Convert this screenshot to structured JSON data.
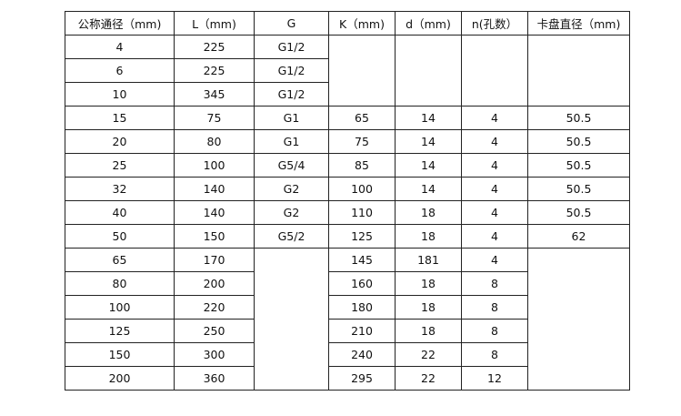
{
  "table": {
    "headers": [
      "公称通径（mm)",
      "L（mm)",
      "G",
      "K（mm)",
      "d（mm)",
      "n(孔数）",
      "卡盘直径（mm)"
    ],
    "rows": [
      [
        "4",
        "225",
        "G1/2",
        "",
        "",
        "",
        ""
      ],
      [
        "6",
        "225",
        "G1/2",
        null,
        null,
        null,
        null
      ],
      [
        "10",
        "345",
        "G1/2",
        null,
        null,
        null,
        null
      ],
      [
        "15",
        "75",
        "G1",
        "65",
        "14",
        "4",
        "50.5"
      ],
      [
        "20",
        "80",
        "G1",
        "75",
        "14",
        "4",
        "50.5"
      ],
      [
        "25",
        "100",
        "G5/4",
        "85",
        "14",
        "4",
        "50.5"
      ],
      [
        "32",
        "140",
        "G2",
        "100",
        "14",
        "4",
        "50.5"
      ],
      [
        "40",
        "140",
        "G2",
        "110",
        "18",
        "4",
        "50.5"
      ],
      [
        "50",
        "150",
        "G5/2",
        "125",
        "18",
        "4",
        "62"
      ],
      [
        "65",
        "170",
        "",
        "145",
        "181",
        "4",
        ""
      ],
      [
        "80",
        "200",
        null,
        "160",
        "18",
        "8",
        null
      ],
      [
        "100",
        "220",
        null,
        "180",
        "18",
        "8",
        null
      ],
      [
        "125",
        "250",
        null,
        "210",
        "18",
        "8",
        null
      ],
      [
        "150",
        "300",
        null,
        "240",
        "22",
        "8",
        null
      ],
      [
        "200",
        "360",
        null,
        "295",
        "22",
        "12",
        null
      ]
    ]
  }
}
